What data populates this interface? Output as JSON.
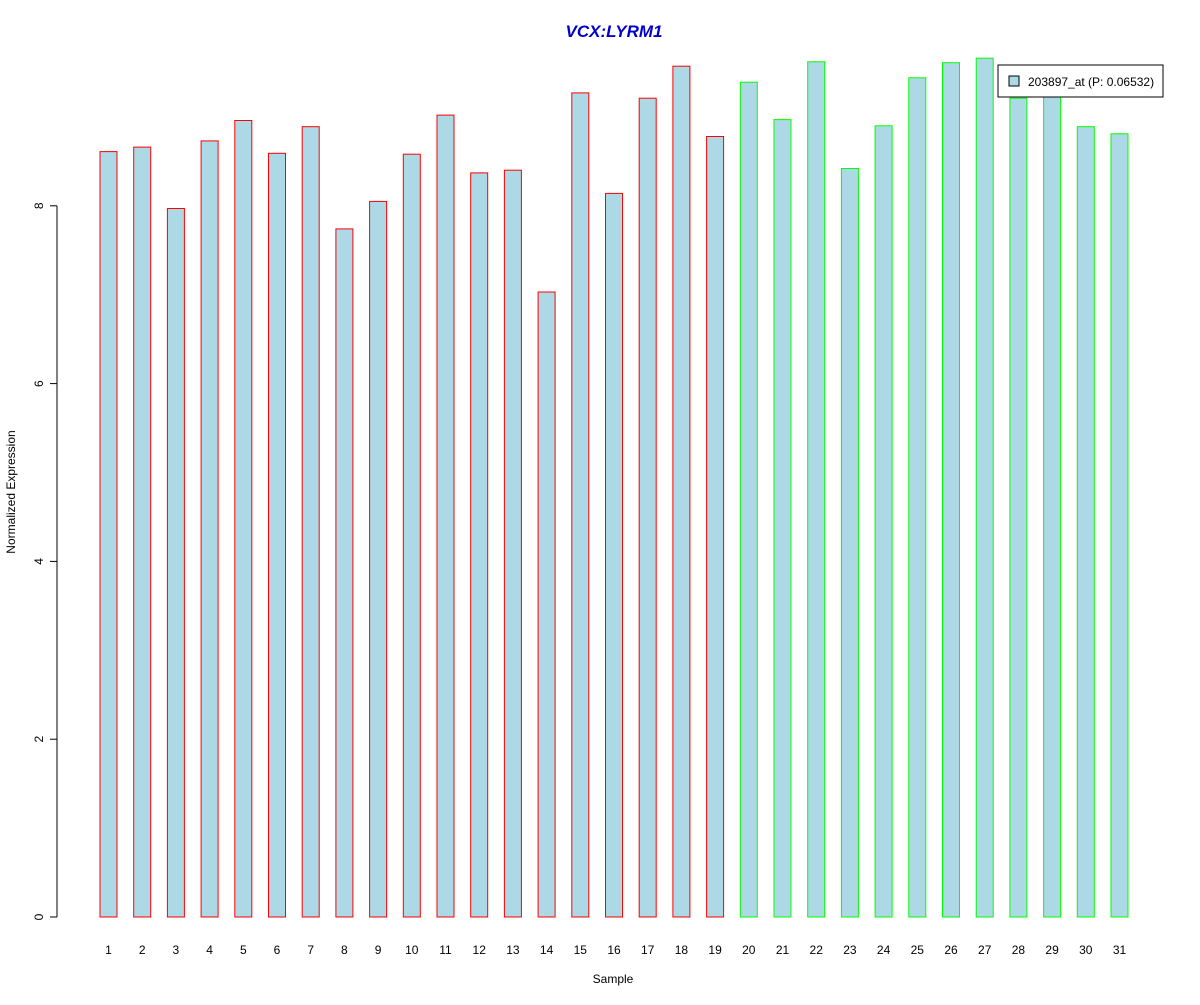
{
  "chart_data": {
    "type": "bar",
    "title": "VCX:LYRM1",
    "title_color": "#0000CC",
    "xlabel": "Sample",
    "ylabel": "Normalized Expression",
    "ylim": [
      0,
      9.8
    ],
    "yticks": [
      0,
      2,
      4,
      6,
      8
    ],
    "categories": [
      "1",
      "2",
      "3",
      "4",
      "5",
      "6",
      "7",
      "8",
      "9",
      "10",
      "11",
      "12",
      "13",
      "14",
      "15",
      "16",
      "17",
      "18",
      "19",
      "20",
      "21",
      "22",
      "23",
      "24",
      "25",
      "26",
      "27",
      "28",
      "29",
      "30",
      "31"
    ],
    "values": [
      8.61,
      8.66,
      7.97,
      8.73,
      8.96,
      8.59,
      8.89,
      7.74,
      8.05,
      8.58,
      9.02,
      8.37,
      8.4,
      7.03,
      9.27,
      8.14,
      9.21,
      9.57,
      8.78,
      9.39,
      8.97,
      9.62,
      8.42,
      8.9,
      9.44,
      9.61,
      9.66,
      9.21,
      9.31,
      8.89,
      8.81
    ],
    "fill_color": "#ADD8E6",
    "group_border_colors": [
      "#FF0000",
      "#FF0000",
      "#FF0000",
      "#FF0000",
      "#FF0000",
      "#FF0000",
      "#FF0000",
      "#FF0000",
      "#FF0000",
      "#FF0000",
      "#FF0000",
      "#FF0000",
      "#FF0000",
      "#FF0000",
      "#FF0000",
      "#FF0000",
      "#FF0000",
      "#FF0000",
      "#FF0000",
      "#00FF00",
      "#00FF00",
      "#00FF00",
      "#00FF00",
      "#00FF00",
      "#00FF00",
      "#00FF00",
      "#00FF00",
      "#00FF00",
      "#00FF00",
      "#00FF00",
      "#00FF00"
    ],
    "series": [
      {
        "name": "203897_at (P: 0.06532)",
        "values": [
          8.61,
          8.66,
          7.97,
          8.73,
          8.96,
          8.59,
          8.89,
          7.74,
          8.05,
          8.58,
          9.02,
          8.37,
          8.4,
          7.03,
          9.27,
          8.14,
          9.21,
          9.57,
          8.78,
          9.39,
          8.97,
          9.62,
          8.42,
          8.9,
          9.44,
          9.61,
          9.66,
          9.21,
          9.31,
          8.89,
          8.81
        ]
      }
    ],
    "legend_position": "top-right",
    "grid": false
  }
}
